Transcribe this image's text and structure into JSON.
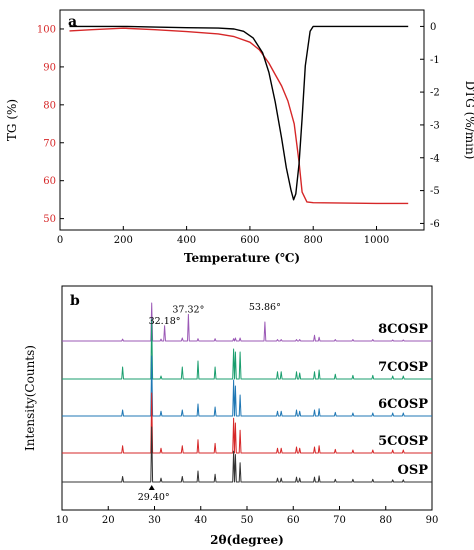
{
  "chart_data": [
    {
      "panel": "a",
      "type": "line",
      "xlabel": "Temperature (℃)",
      "ylabel": "TG (%)",
      "ylabel_right": "DTG (%/min)",
      "xlim": [
        0,
        1150
      ],
      "ylim": [
        47,
        105
      ],
      "ylim_right": [
        -6.2,
        0.5
      ],
      "xticks": [
        "0",
        "200",
        "400",
        "600",
        "800",
        "1000"
      ],
      "yticks": [
        "50",
        "60",
        "70",
        "80",
        "90",
        "100"
      ],
      "yticks_right": [
        "0",
        "-1",
        "-2",
        "-3",
        "-4",
        "-5",
        "-6"
      ],
      "grid": false,
      "series": [
        {
          "axis": "left",
          "color": "#d62728",
          "x": [
            30,
            100,
            200,
            300,
            400,
            500,
            550,
            600,
            630,
            660,
            680,
            700,
            720,
            740,
            755,
            765,
            780,
            800,
            900,
            1000,
            1100
          ],
          "y": [
            99.5,
            99.8,
            100.2,
            99.8,
            99.3,
            98.7,
            98.0,
            96.5,
            94.5,
            91.0,
            88.0,
            85.0,
            81.0,
            75.0,
            65.0,
            57.0,
            54.4,
            54.2,
            54.1,
            54.0,
            54.0
          ]
        },
        {
          "axis": "right",
          "color": "#000000",
          "x": [
            30,
            100,
            200,
            300,
            400,
            500,
            550,
            580,
            610,
            640,
            660,
            680,
            700,
            715,
            730,
            738,
            745,
            755,
            765,
            775,
            790,
            800,
            900,
            1000,
            1100
          ],
          "y": [
            0.0,
            0.0,
            0.0,
            -0.02,
            -0.04,
            -0.05,
            -0.08,
            -0.15,
            -0.35,
            -0.8,
            -1.4,
            -2.3,
            -3.4,
            -4.3,
            -5.0,
            -5.28,
            -5.1,
            -4.2,
            -2.8,
            -1.2,
            -0.15,
            0.0,
            0.0,
            0.0,
            0.0
          ]
        }
      ]
    },
    {
      "panel": "b",
      "type": "line",
      "xlabel": "2θ(degree)",
      "ylabel": "Intensity(Counts)",
      "xlim": [
        10,
        90
      ],
      "xticks": [
        "10",
        "20",
        "30",
        "40",
        "50",
        "60",
        "70",
        "80",
        "90"
      ],
      "grid": false,
      "peak_positions": [
        23.1,
        29.4,
        31.4,
        32.18,
        36.0,
        37.32,
        39.4,
        43.1,
        47.1,
        47.5,
        48.5,
        53.86,
        56.6,
        57.4,
        60.7,
        61.4,
        64.6,
        65.6,
        69.1,
        72.9,
        77.2,
        81.5,
        83.8
      ],
      "series": [
        {
          "name": "8COSP",
          "color": "#9b59b6",
          "intensities": [
            0.05,
            1.0,
            0.05,
            0.4,
            0.08,
            0.7,
            0.06,
            0.06,
            0.06,
            0.08,
            0.08,
            0.5,
            0.04,
            0.04,
            0.04,
            0.04,
            0.15,
            0.1,
            0.04,
            0.04,
            0.04,
            0.03,
            0.03
          ]
        },
        {
          "name": "7COSP",
          "color": "#1a9e6e",
          "intensities": [
            0.2,
            1.0,
            0.05,
            0.0,
            0.2,
            0.0,
            0.3,
            0.2,
            0.5,
            0.45,
            0.45,
            0.0,
            0.12,
            0.12,
            0.12,
            0.1,
            0.12,
            0.15,
            0.08,
            0.06,
            0.06,
            0.05,
            0.05
          ]
        },
        {
          "name": "6COSP",
          "color": "#1f77b4",
          "intensities": [
            0.1,
            1.0,
            0.08,
            0.0,
            0.1,
            0.0,
            0.2,
            0.15,
            0.6,
            0.5,
            0.35,
            0.0,
            0.08,
            0.08,
            0.1,
            0.08,
            0.1,
            0.12,
            0.06,
            0.05,
            0.05,
            0.05,
            0.05
          ]
        },
        {
          "name": "5COSP",
          "color": "#d62728",
          "intensities": [
            0.12,
            1.0,
            0.08,
            0.0,
            0.12,
            0.0,
            0.22,
            0.16,
            0.58,
            0.5,
            0.38,
            0.0,
            0.08,
            0.08,
            0.1,
            0.08,
            0.1,
            0.12,
            0.06,
            0.05,
            0.05,
            0.05,
            0.05
          ]
        },
        {
          "name": "OSP",
          "color": "#333333",
          "intensities": [
            0.1,
            1.0,
            0.07,
            0.0,
            0.1,
            0.0,
            0.2,
            0.14,
            0.56,
            0.5,
            0.35,
            0.0,
            0.07,
            0.07,
            0.09,
            0.07,
            0.09,
            0.11,
            0.05,
            0.05,
            0.05,
            0.04,
            0.04
          ]
        }
      ],
      "annotations": [
        {
          "text": "32.18°",
          "x": 32.18,
          "series": "8COSP"
        },
        {
          "text": "37.32°",
          "x": 37.32,
          "series": "8COSP"
        },
        {
          "text": "53.86°",
          "x": 53.86,
          "series": "8COSP"
        },
        {
          "text": "29.40°",
          "x": 29.4,
          "series": "OSP"
        }
      ]
    }
  ]
}
